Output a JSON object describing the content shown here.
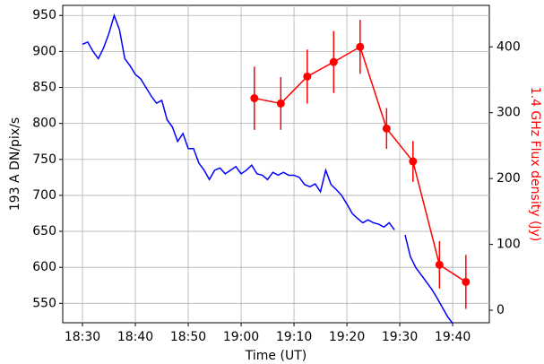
{
  "chart_data": {
    "type": "line",
    "xlabel": "Time (UT)",
    "ylabel": "193 A DN/pix/s",
    "y2label": "1.4 GHz Flux density (Jy)",
    "xlim": [
      "18:26:16",
      "19:46:56"
    ],
    "xticks": [
      "18:30",
      "18:40",
      "18:50",
      "19:00",
      "19:10",
      "19:20",
      "19:30",
      "19:40"
    ],
    "ylim": [
      523,
      964
    ],
    "yticks": [
      550,
      600,
      650,
      700,
      750,
      800,
      850,
      900,
      950
    ],
    "y2lim": [
      -19,
      463
    ],
    "y2ticks": [
      0,
      100,
      200,
      300,
      400
    ],
    "grid": true,
    "y2color": "#ff0000",
    "series": [
      {
        "color": "#0000ff",
        "x": [
          "18:30",
          "18:31",
          "18:32",
          "18:33",
          "18:34",
          "18:35",
          "18:36",
          "18:37",
          "18:38",
          "18:39",
          "18:40",
          "18:41",
          "18:42",
          "18:43",
          "18:44",
          "18:45",
          "18:46",
          "18:47",
          "18:48",
          "18:49",
          "18:50",
          "18:51",
          "18:52",
          "18:53",
          "18:54",
          "18:55",
          "18:56",
          "18:57",
          "18:58",
          "18:59",
          "19:00",
          "19:01",
          "19:02",
          "19:03",
          "19:04",
          "19:05",
          "19:06",
          "19:07",
          "19:08",
          "19:09",
          "19:10",
          "19:11",
          "19:12",
          "19:13",
          "19:14",
          "19:15",
          "19:16",
          "19:17",
          "19:18",
          "19:19",
          "19:20",
          "19:21",
          "19:22",
          "19:23",
          "19:24",
          "19:25",
          "19:26",
          "19:27",
          "19:28",
          "19:29",
          "19:30",
          "19:31",
          "19:32",
          "19:33",
          "19:34",
          "19:35",
          "19:36",
          "19:37",
          "19:38",
          "19:39",
          "19:40"
        ],
        "values": [
          910,
          913,
          900,
          890,
          905,
          925,
          950,
          930,
          890,
          880,
          868,
          862,
          850,
          838,
          828,
          832,
          805,
          795,
          775,
          786,
          765,
          765,
          745,
          735,
          722,
          735,
          738,
          730,
          735,
          740,
          730,
          735,
          742,
          730,
          728,
          722,
          732,
          728,
          732,
          728,
          728,
          725,
          715,
          712,
          716,
          705,
          735,
          715,
          708,
          700,
          688,
          675,
          668,
          662,
          666,
          662,
          660,
          656,
          662,
          652,
          null,
          645,
          615,
          600,
          590,
          580,
          570,
          558,
          545,
          532,
          522
        ]
      },
      {
        "color": "#ff0000",
        "axis": "y2",
        "x": [
          "19:02:30",
          "19:07:30",
          "19:12:30",
          "19:17:30",
          "19:22:30",
          "19:27:30",
          "19:32:30",
          "19:37:30",
          "19:42:30"
        ],
        "values": [
          322,
          314,
          355,
          377,
          400,
          276,
          226,
          69,
          43
        ],
        "errors": [
          48,
          40,
          41,
          47,
          41,
          31,
          31,
          36,
          41
        ]
      }
    ]
  }
}
